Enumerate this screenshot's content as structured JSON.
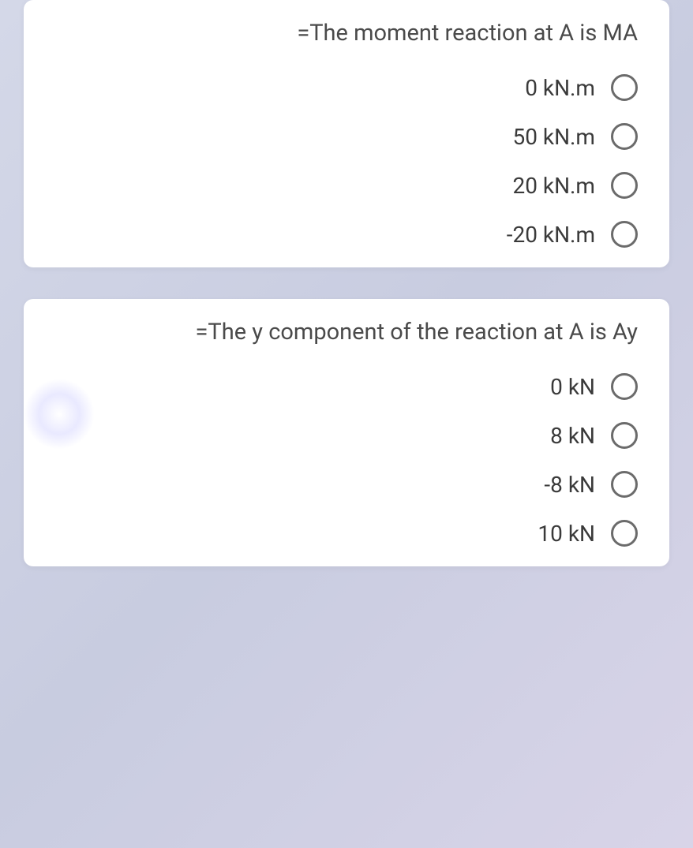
{
  "questions": [
    {
      "prompt": "=The moment reaction at A is MA",
      "options": [
        {
          "label": "0 kN.m"
        },
        {
          "label": "50 kN.m"
        },
        {
          "label": "20 kN.m"
        },
        {
          "label": "-20 kN.m"
        }
      ]
    },
    {
      "prompt": "=The y component of the reaction at A is Ay",
      "options": [
        {
          "label": "0 kN"
        },
        {
          "label": "8 kN"
        },
        {
          "label": "-8 kN"
        },
        {
          "label": "10 kN"
        }
      ]
    }
  ],
  "styling": {
    "background_gradient": [
      "#d4d8e8",
      "#c8cce0",
      "#d8d4e8"
    ],
    "card_background": "#ffffff",
    "card_border_radius": 12,
    "question_font_size": 29,
    "question_color": "#4a4a4a",
    "option_font_size": 28,
    "option_color": "#3a3a3a",
    "radio_border_color": "#6b6b6b",
    "radio_size": 34,
    "radio_border_width": 3
  }
}
